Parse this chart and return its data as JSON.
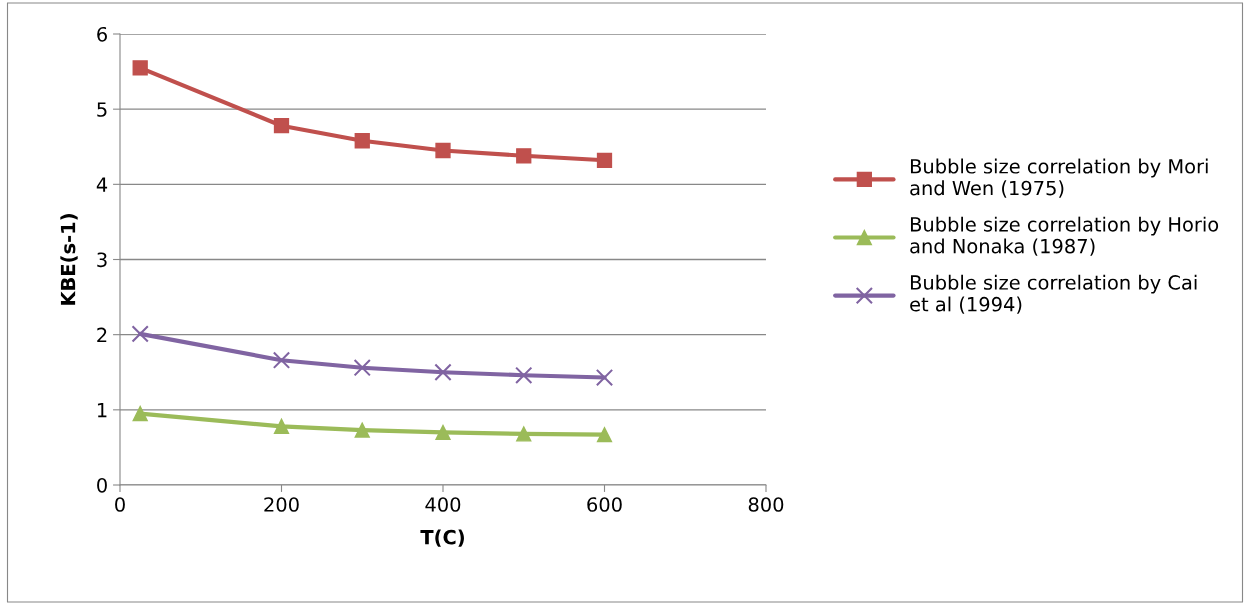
{
  "chart_data": {
    "type": "line",
    "xlabel": "T(C)",
    "ylabel": "KBE(s-1)",
    "x": [
      25,
      200,
      300,
      400,
      500,
      600
    ],
    "series": [
      {
        "name": "Bubble size correlation by Mori and Wen (1975)",
        "color": "#c0504d",
        "marker": "square",
        "values": [
          5.55,
          4.78,
          4.58,
          4.45,
          4.38,
          4.32
        ]
      },
      {
        "name": "Bubble size correlation by Horio and Nonaka (1987)",
        "color": "#9bbb59",
        "marker": "triangle",
        "values": [
          0.95,
          0.78,
          0.73,
          0.7,
          0.68,
          0.67
        ]
      },
      {
        "name": "Bubble size correlation by Cai et al (1994)",
        "color": "#8064a2",
        "marker": "cross",
        "values": [
          2.01,
          1.66,
          1.56,
          1.5,
          1.46,
          1.43
        ]
      }
    ],
    "xlim": [
      0,
      800
    ],
    "xticks": [
      0,
      200,
      400,
      600,
      800
    ],
    "ylim": [
      0,
      6
    ],
    "yticks": [
      0,
      1,
      2,
      3,
      4,
      5,
      6
    ],
    "grid": "y",
    "legend": "right"
  }
}
